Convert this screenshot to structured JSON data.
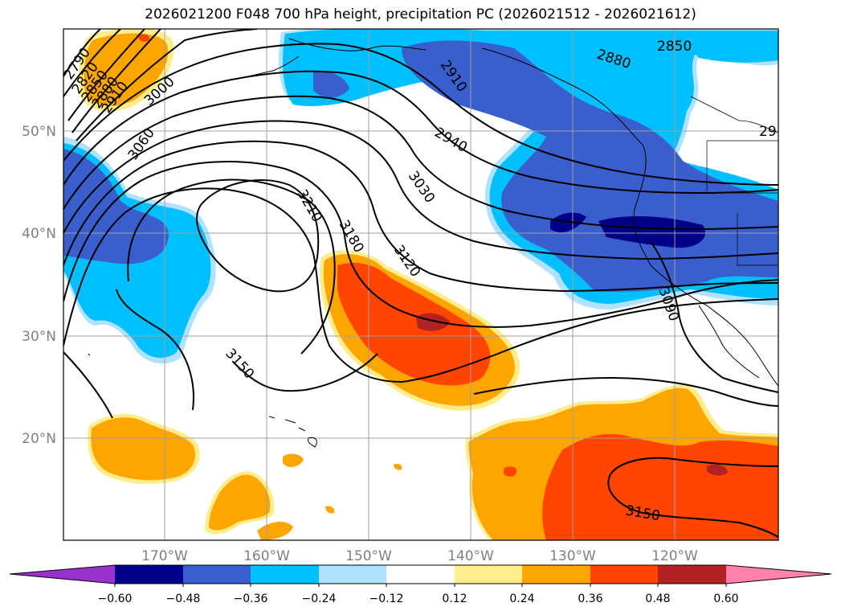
{
  "title": "2026021200 F048 700 hPa height, precipitation PC (2026021512 - 2026021612)",
  "map": {
    "lat_labels": [
      "50°N",
      "40°N",
      "30°N",
      "20°N"
    ],
    "lon_labels": [
      "170°W",
      "160°W",
      "150°W",
      "140°W",
      "130°W",
      "120°W"
    ],
    "contour_labels": [
      "2790",
      "2820",
      "2850",
      "2880",
      "2910",
      "3000",
      "3060",
      "3210",
      "3180",
      "3120",
      "3150",
      "2910",
      "2940",
      "3030",
      "2880",
      "2850",
      "29",
      "3090",
      "3150"
    ]
  },
  "colorbar": {
    "ticks": [
      "−0.60",
      "−0.48",
      "−0.36",
      "−0.24",
      "−0.12",
      "0.12",
      "0.24",
      "0.36",
      "0.48",
      "0.60"
    ],
    "colors": [
      "#9932cc",
      "#00008b",
      "#3a5fcd",
      "#00bfff",
      "#b0e2ff",
      "#ffffff",
      "#ffec8b",
      "#ffa500",
      "#ff4500",
      "#b22222",
      "#ff82ab"
    ]
  }
}
